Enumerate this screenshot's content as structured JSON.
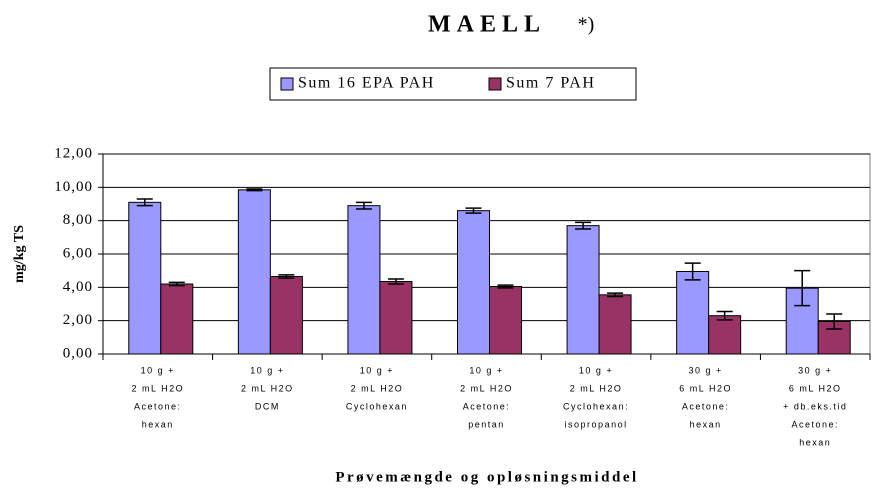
{
  "chart_data": {
    "type": "bar",
    "title": "MAELL",
    "annotation": "*)",
    "x_label": "Prøvemængde og opløsningsmiddel",
    "y_label": "mg/kg TS",
    "categories": [
      [
        "10 g +",
        "2 mL H2O",
        "Acetone:",
        "hexan"
      ],
      [
        "10 g +",
        "2 mL H2O",
        "DCM"
      ],
      [
        "10 g +",
        "2 mL H2O",
        "Cyclohexan"
      ],
      [
        "10 g +",
        "2 mL H2O",
        "Acetone:",
        "pentan"
      ],
      [
        "10 g +",
        "2 mL H2O",
        "Cyclohexan:",
        "isopropanol"
      ],
      [
        "30 g +",
        "6 mL H2O",
        "Acetone:",
        "hexan"
      ],
      [
        "30 g +",
        "6 mL H2O",
        "+ db.eks.tid",
        "Acetone:",
        "hexan"
      ]
    ],
    "series": [
      {
        "name": "Sum 16 EPA PAH",
        "color": "#9999ff",
        "values": [
          9.1,
          9.85,
          8.9,
          8.6,
          7.7,
          4.95,
          3.95
        ],
        "errors": [
          0.2,
          0.05,
          0.2,
          0.15,
          0.2,
          0.5,
          1.05
        ]
      },
      {
        "name": "Sum 7 PAH",
        "color": "#993366",
        "values": [
          4.2,
          4.65,
          4.35,
          4.05,
          3.55,
          2.3,
          1.95
        ],
        "errors": [
          0.1,
          0.1,
          0.15,
          0.08,
          0.1,
          0.25,
          0.45
        ]
      }
    ],
    "ylim": [
      0,
      12
    ],
    "yticks": [
      {
        "value": 0,
        "label": "0,00"
      },
      {
        "value": 2,
        "label": "2,00"
      },
      {
        "value": 4,
        "label": "4,00"
      },
      {
        "value": 6,
        "label": "6,00"
      },
      {
        "value": 8,
        "label": "8,00"
      },
      {
        "value": 10,
        "label": "10,00"
      },
      {
        "value": 12,
        "label": "12,00"
      }
    ],
    "grid": true,
    "legend": "top"
  }
}
